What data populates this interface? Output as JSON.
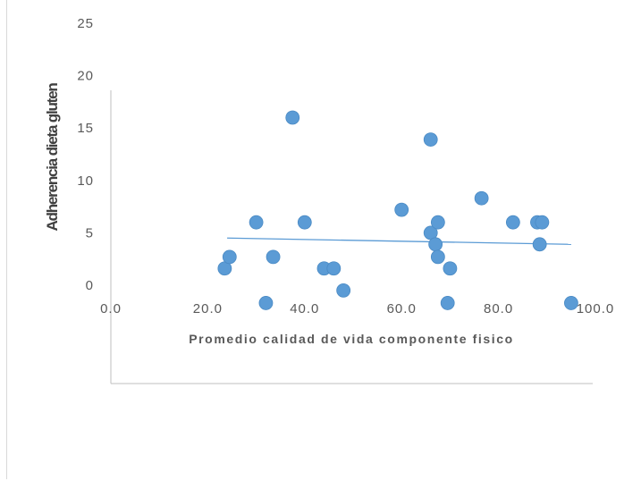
{
  "chart_data": {
    "type": "scatter",
    "title": "",
    "xlabel": "Promedio  calidad  de vida  componente  fisico",
    "ylabel": "Adherencia dieta gluten",
    "xlim": [
      0,
      100
    ],
    "ylim": [
      -5,
      25
    ],
    "x_ticks": [
      "0.0",
      "20.0",
      "40.0",
      "60.0",
      "80.0",
      "100.0"
    ],
    "y_ticks": [
      "0",
      "5",
      "10",
      "15",
      "20",
      "25"
    ],
    "point_color": "#5b9bd5",
    "trend_color": "#5b9bd5",
    "axis_color": "#bfbfbf",
    "points": [
      {
        "x": 23.5,
        "y": 1.6
      },
      {
        "x": 24.5,
        "y": 2.7
      },
      {
        "x": 30.0,
        "y": 6.0
      },
      {
        "x": 32.0,
        "y": -1.7
      },
      {
        "x": 33.5,
        "y": 2.7
      },
      {
        "x": 37.5,
        "y": 16.0
      },
      {
        "x": 40.0,
        "y": 6.0
      },
      {
        "x": 44.0,
        "y": 1.6
      },
      {
        "x": 46.0,
        "y": 1.6
      },
      {
        "x": 48.0,
        "y": -0.5
      },
      {
        "x": 60.0,
        "y": 7.2
      },
      {
        "x": 66.0,
        "y": 13.9
      },
      {
        "x": 66.0,
        "y": 5.0
      },
      {
        "x": 67.0,
        "y": 3.9
      },
      {
        "x": 67.5,
        "y": 2.7
      },
      {
        "x": 67.5,
        "y": 6.0
      },
      {
        "x": 69.5,
        "y": -1.7
      },
      {
        "x": 70.0,
        "y": 1.6
      },
      {
        "x": 76.5,
        "y": 8.3
      },
      {
        "x": 83.0,
        "y": 6.0
      },
      {
        "x": 88.0,
        "y": 6.0
      },
      {
        "x": 89.0,
        "y": 6.0
      },
      {
        "x": 88.5,
        "y": 3.9
      },
      {
        "x": 95.0,
        "y": -1.7
      }
    ],
    "trendline": {
      "x1": 24.0,
      "y1": 4.5,
      "x2": 95.0,
      "y2": 3.9
    }
  }
}
